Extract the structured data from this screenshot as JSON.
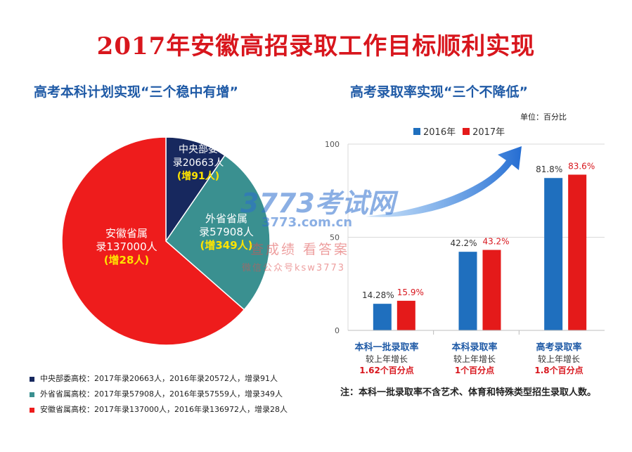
{
  "title": "2017年安徽高招录取工作目标顺利实现",
  "left_subtitle": "高考本科计划实现“三个稳中有增”",
  "right_subtitle": "高考录取率实现“三个不降低”",
  "unit_label": "单位：百分比",
  "watermark": {
    "brand": "3773考试网",
    "url": "3773.com.cn",
    "line1": "查成绩 看答案",
    "line2": "微信公众号ksw3773"
  },
  "colors": {
    "central": "#17285e",
    "other": "#3a9090",
    "anhui": "#ee1c1c",
    "bar2016": "#1f6fbe",
    "bar2017": "#e41a1a"
  },
  "pie_labels": [
    {
      "line1": "中央部委",
      "line2": "录20663人",
      "inc": "(增91人)"
    },
    {
      "line1": "外省省属",
      "line2": "录57908人",
      "inc": "(增349人)"
    },
    {
      "line1": "安徽省属",
      "line2": "录137000人",
      "inc": "(增28人)"
    }
  ],
  "legend": [
    "中央部委高校：2017年录20663人，2016年录20572人，增录91人",
    "外省省属高校：2017年录57908人，2016年录57559人，增录349人",
    "安徽省属高校：2017年录137000人，2016年录136972人，增录28人"
  ],
  "bar_categories": [
    {
      "name": "本科一批录取率",
      "desc": "较上年增长",
      "inc": "1.62个百分点"
    },
    {
      "name": "本科录取率",
      "desc": "较上年增长",
      "inc": "1个百分点"
    },
    {
      "name": "高考录取率",
      "desc": "较上年增长",
      "inc": "1.8个百分点"
    }
  ],
  "note": "注：本科一批录取率不含艺术、体育和特殊类型招生录取人数。",
  "chart_data": [
    {
      "type": "pie",
      "title": "高考本科计划实现“三个稳中有增”",
      "labels": [
        "中央部委高校",
        "外省省属高校",
        "安徽省属高校"
      ],
      "values": [
        20663,
        57908,
        137000
      ],
      "values_2016": [
        20572,
        57559,
        136972
      ],
      "increase": [
        91,
        349,
        28
      ]
    },
    {
      "type": "bar",
      "title": "高考录取率实现“三个不降低”",
      "categories": [
        "本科一批录取率",
        "本科录取率",
        "高考录取率"
      ],
      "series": [
        {
          "name": "2016年",
          "values": [
            14.28,
            42.2,
            81.8
          ],
          "labels": [
            "14.28%",
            "42.2%",
            "81.8%"
          ]
        },
        {
          "name": "2017年",
          "values": [
            15.9,
            43.2,
            83.6
          ],
          "labels": [
            "15.9%",
            "43.2%",
            "83.6%"
          ]
        }
      ],
      "yticks": [
        "0",
        "50",
        "100"
      ],
      "ylim": [
        0,
        100
      ],
      "legend_position": "top"
    }
  ]
}
